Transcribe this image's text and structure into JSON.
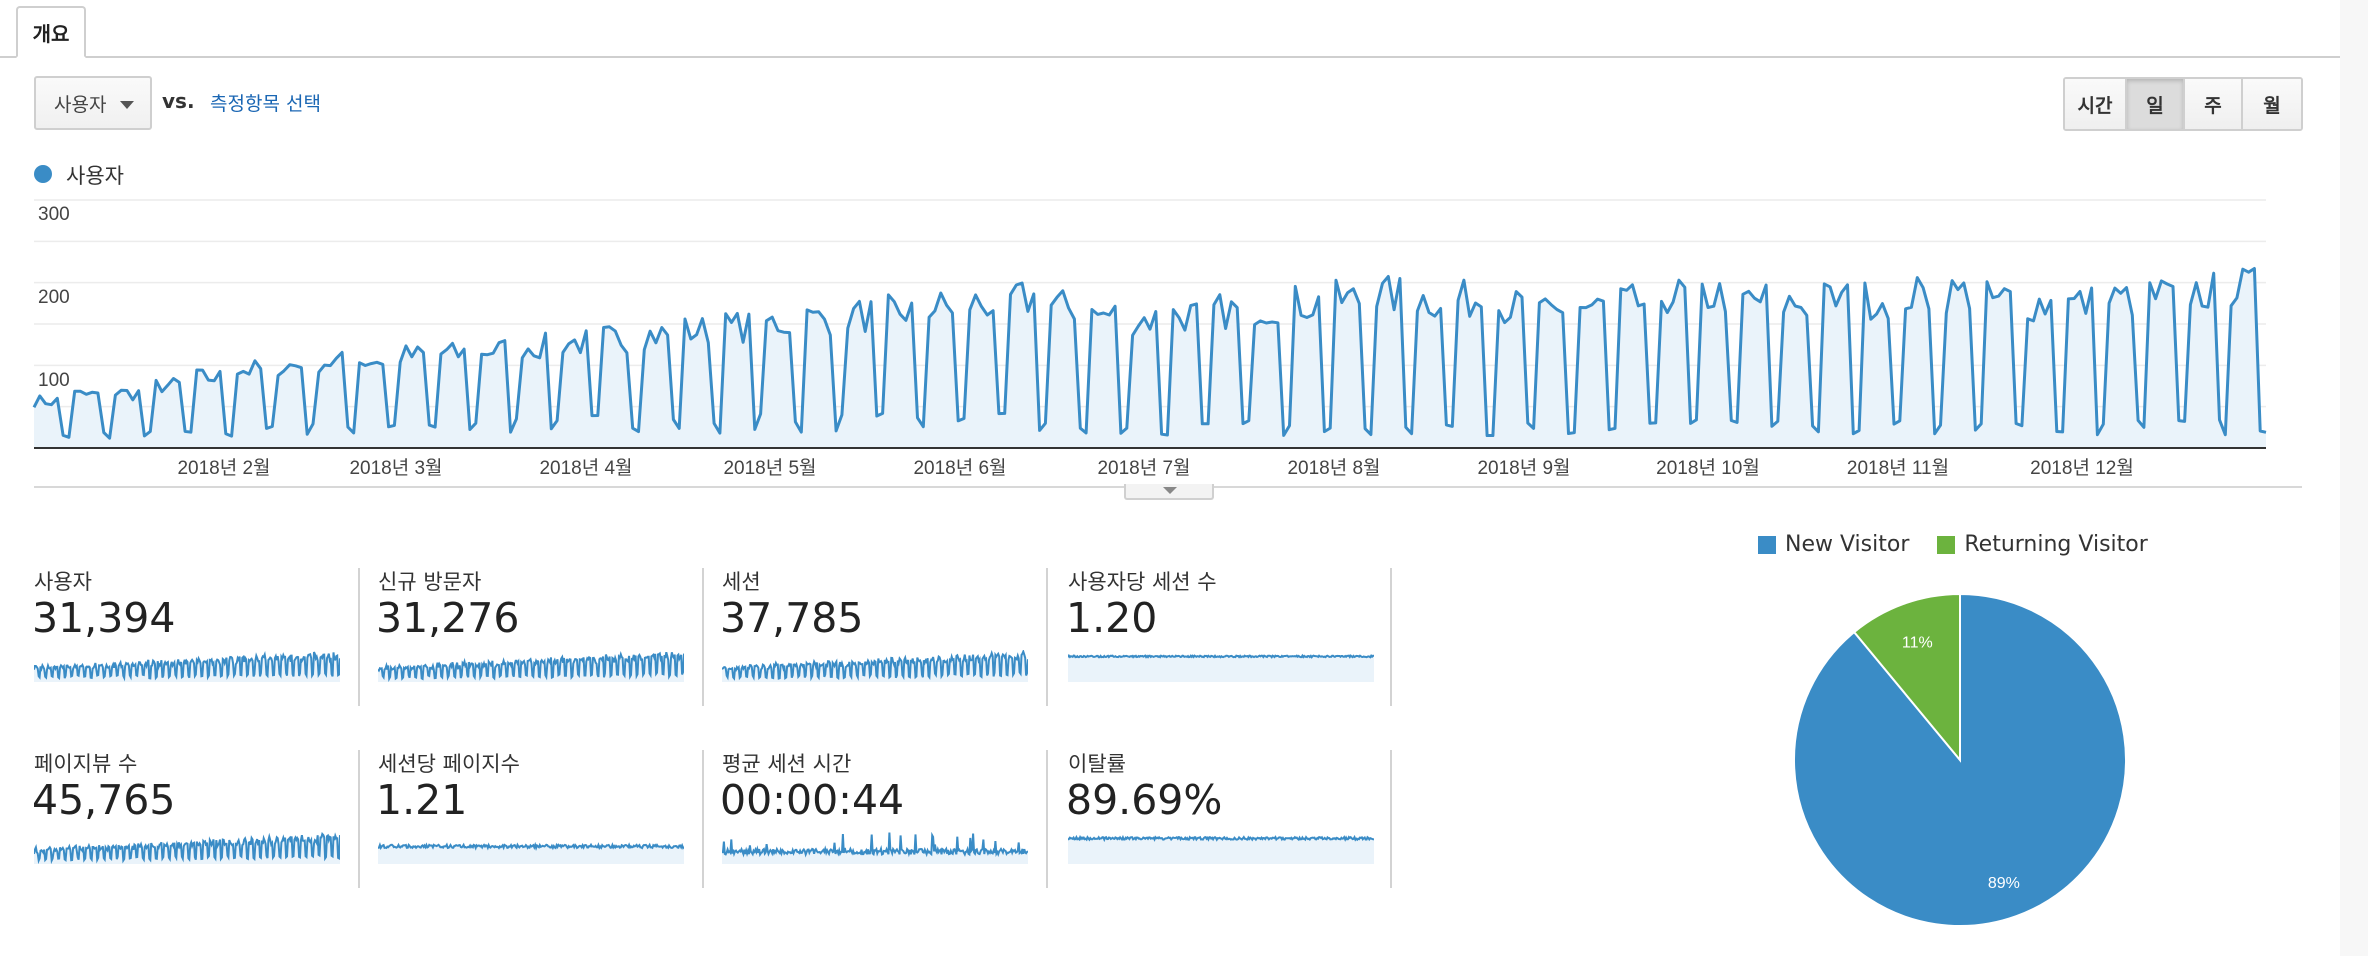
{
  "tab": {
    "label": "개요"
  },
  "controls": {
    "metric_select": "사용자",
    "vs_label": "vs.",
    "compare_link": "측정항목 선택",
    "periods": [
      {
        "label": "시간",
        "active": false
      },
      {
        "label": "일",
        "active": true
      },
      {
        "label": "주",
        "active": false
      },
      {
        "label": "월",
        "active": false
      }
    ]
  },
  "colors": {
    "series": "#3a8cc6",
    "fill": "#eaf3fa",
    "new_visitor": "#3a8cc6",
    "returning_visitor": "#6cb33e"
  },
  "chart_data": [
    {
      "type": "line",
      "series": [
        {
          "name": "사용자",
          "pattern": "daily users, weekly weekday/weekend cycle, rising trend"
        }
      ],
      "y_ticks": [
        "300",
        "200",
        "100"
      ],
      "ylim": [
        0,
        300
      ],
      "x_ticks": [
        "2018년 2월",
        "2018년 3월",
        "2018년 4월",
        "2018년 5월",
        "2018년 6월",
        "2018년 7월",
        "2018년 8월",
        "2018년 9월",
        "2018년 10월",
        "2018년 11월",
        "2018년 12월"
      ],
      "weekday_level": [
        60,
        68,
        70,
        80,
        90,
        100,
        105,
        110,
        112,
        118,
        120,
        125,
        130,
        135,
        140,
        145,
        150,
        155,
        160,
        165,
        170,
        175,
        180,
        185,
        190,
        180,
        170,
        165,
        170,
        175,
        180,
        185,
        190,
        195,
        190,
        190,
        180,
        170,
        180,
        185,
        195,
        195,
        190,
        185,
        190,
        190,
        195,
        198,
        190,
        185,
        185,
        190,
        195,
        200,
        205
      ],
      "weekend_level": [
        15,
        15,
        15,
        18,
        20,
        20,
        22,
        25,
        25,
        25,
        28,
        28,
        30,
        30,
        30,
        30,
        30,
        30,
        30,
        30,
        30,
        28,
        30,
        30,
        30,
        25,
        20,
        20,
        22,
        25,
        25,
        25,
        25,
        25,
        25,
        25,
        25,
        20,
        20,
        22,
        25,
        25,
        25,
        25,
        25,
        25,
        25,
        25,
        25,
        25,
        25,
        25,
        25,
        25,
        25
      ],
      "noise_seed": 7
    },
    {
      "type": "pie",
      "slices": [
        {
          "label": "New Visitor",
          "value": 89,
          "text": "89%"
        },
        {
          "label": "Returning Visitor",
          "value": 11,
          "text": "11%"
        }
      ]
    }
  ],
  "cards": [
    {
      "title": "사용자",
      "value": "31,394",
      "spark": {
        "kind": "weekly-rising",
        "base": 0.35,
        "amp": 0.55,
        "noise": 0.1
      }
    },
    {
      "title": "신규 방문자",
      "value": "31,276",
      "spark": {
        "kind": "weekly-rising",
        "base": 0.35,
        "amp": 0.55,
        "noise": 0.1
      }
    },
    {
      "title": "세션",
      "value": "37,785",
      "spark": {
        "kind": "weekly-rising",
        "base": 0.35,
        "amp": 0.55,
        "noise": 0.1
      }
    },
    {
      "title": "사용자당 세션 수",
      "value": "1.20",
      "spark": {
        "kind": "flat",
        "level": 0.8,
        "noise": 0.05
      }
    },
    {
      "title": "페이지뷰 수",
      "value": "45,765",
      "spark": {
        "kind": "weekly-rising",
        "base": 0.35,
        "amp": 0.55,
        "noise": 0.1
      }
    },
    {
      "title": "세션당 페이지수",
      "value": "1.21",
      "spark": {
        "kind": "flat",
        "level": 0.55,
        "noise": 0.1
      }
    },
    {
      "title": "평균 세션 시간",
      "value": "00:00:44",
      "spark": {
        "kind": "spiky",
        "level": 0.3,
        "noise": 0.35
      }
    },
    {
      "title": "이탈률",
      "value": "89.69%",
      "spark": {
        "kind": "flat",
        "level": 0.8,
        "noise": 0.08
      }
    }
  ],
  "pie_legend": [
    {
      "label": "New Visitor",
      "color": "#3a8cc6"
    },
    {
      "label": "Returning Visitor",
      "color": "#6cb33e"
    }
  ]
}
